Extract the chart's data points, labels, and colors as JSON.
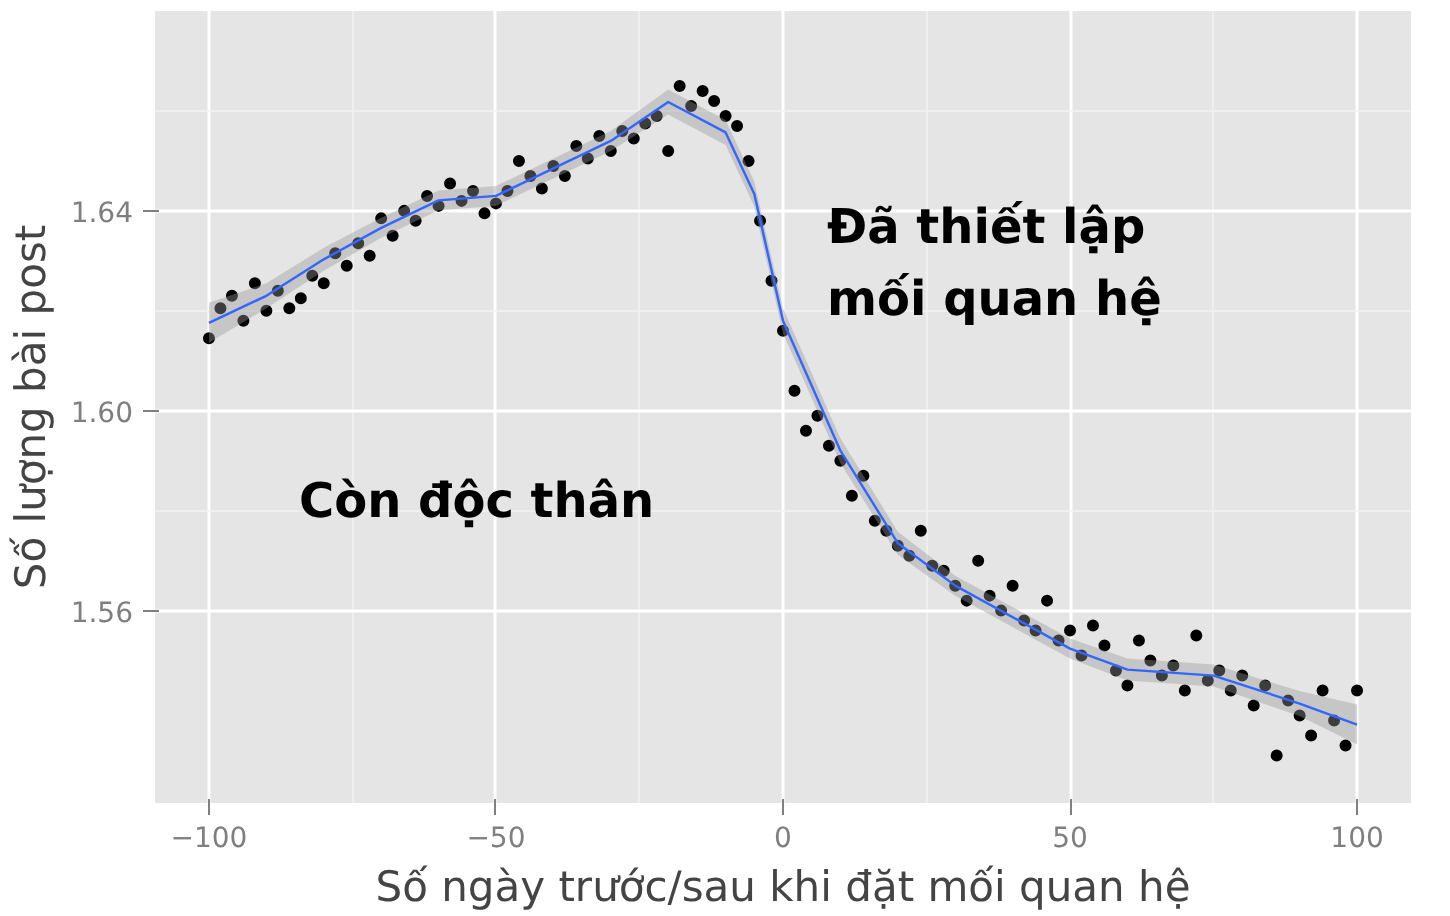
{
  "chart_data": {
    "type": "scatter",
    "xlabel": "Số ngày trước/sau khi đặt mối quan hệ",
    "ylabel": "Số lượng bài post",
    "annotations": [
      "Còn độc thân",
      "Đã thiết lập\nmối quan hệ"
    ],
    "xlim": [
      -109.4,
      109.4
    ],
    "ylim": [
      1.5215,
      1.68
    ],
    "xticks": [
      -100,
      -50,
      0,
      50,
      100
    ],
    "yticks": [
      {
        "value": 1.56,
        "label": "1.56"
      },
      {
        "value": 1.6,
        "label": "1.60"
      },
      {
        "value": 1.64,
        "label": "1.64"
      }
    ],
    "grid": true,
    "series": [
      {
        "marker": "circle",
        "color": "#000000",
        "x": [
          -100,
          -98,
          -96,
          -94,
          -92,
          -90,
          -88,
          -86,
          -84,
          -82,
          -80,
          -78,
          -76,
          -74,
          -72,
          -70,
          -68,
          -66,
          -64,
          -62,
          -60,
          -58,
          -56,
          -54,
          -52,
          -50,
          -48,
          -46,
          -44,
          -42,
          -40,
          -38,
          -36,
          -34,
          -32,
          -30,
          -28,
          -26,
          -24,
          -22,
          -20,
          -18,
          -16,
          -14,
          -12,
          -10,
          -8,
          -6,
          -4,
          -2,
          0,
          2,
          4,
          6,
          8,
          10,
          12,
          14,
          16,
          18,
          20,
          22,
          24,
          26,
          28,
          30,
          32,
          34,
          36,
          38,
          40,
          42,
          44,
          46,
          48,
          50,
          52,
          54,
          56,
          58,
          60,
          62,
          64,
          66,
          68,
          70,
          72,
          74,
          76,
          78,
          80,
          82,
          84,
          86,
          88,
          90,
          92,
          94,
          96,
          98,
          100
        ],
        "values": [
          1.6145,
          1.6205,
          1.623,
          1.618,
          1.6255,
          1.62,
          1.624,
          1.6205,
          1.6225,
          1.627,
          1.6255,
          1.6315,
          1.629,
          1.6335,
          1.631,
          1.6385,
          1.635,
          1.64,
          1.638,
          1.643,
          1.641,
          1.6455,
          1.642,
          1.644,
          1.6395,
          1.6415,
          1.644,
          1.65,
          1.647,
          1.6445,
          1.649,
          1.647,
          1.653,
          1.6505,
          1.655,
          1.652,
          1.656,
          1.6545,
          1.6575,
          1.659,
          1.652,
          1.665,
          1.661,
          1.664,
          1.662,
          1.659,
          1.657,
          1.65,
          1.638,
          1.626,
          1.616,
          1.604,
          1.596,
          1.599,
          1.593,
          1.59,
          1.583,
          1.587,
          1.578,
          1.576,
          1.573,
          1.571,
          1.576,
          1.569,
          1.568,
          1.565,
          1.562,
          1.57,
          1.563,
          1.56,
          1.565,
          1.558,
          1.556,
          1.562,
          1.554,
          1.556,
          1.551,
          1.557,
          1.553,
          1.548,
          1.545,
          1.554,
          1.55,
          1.547,
          1.549,
          1.544,
          1.555,
          1.546,
          1.548,
          1.544,
          1.547,
          1.541,
          1.545,
          1.531,
          1.542,
          1.539,
          1.535,
          1.544,
          1.538,
          1.533,
          1.544
        ]
      },
      {
        "type": "line",
        "color": "#3366ff",
        "x": [
          -100,
          -90,
          -80,
          -70,
          -60,
          -50,
          -40,
          -30,
          -20,
          -10,
          -5,
          0,
          10,
          20,
          30,
          50,
          60,
          75,
          90,
          100
        ],
        "values": [
          1.6176,
          1.623,
          1.6303,
          1.6366,
          1.6421,
          1.643,
          1.6485,
          1.654,
          1.6618,
          1.6557,
          1.6434,
          1.618,
          1.592,
          1.5735,
          1.565,
          1.5524,
          1.5482,
          1.547,
          1.5414,
          1.5372
        ],
        "lower": [
          1.6136,
          1.6205,
          1.628,
          1.6346,
          1.6401,
          1.641,
          1.6465,
          1.652,
          1.6593,
          1.6532,
          1.6409,
          1.6155,
          1.5895,
          1.5712,
          1.563,
          1.5504,
          1.546,
          1.5448,
          1.5389,
          1.5332
        ],
        "upper": [
          1.6216,
          1.6255,
          1.6326,
          1.6386,
          1.6441,
          1.645,
          1.6505,
          1.656,
          1.6643,
          1.6582,
          1.6459,
          1.6205,
          1.5945,
          1.5758,
          1.567,
          1.5544,
          1.5504,
          1.5492,
          1.5439,
          1.5412
        ]
      }
    ]
  }
}
